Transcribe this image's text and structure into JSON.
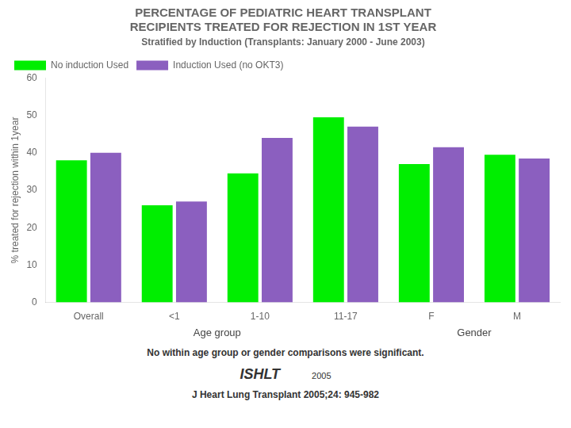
{
  "chart_data": {
    "type": "bar",
    "title": [
      "PERCENTAGE OF PEDIATRIC HEART TRANSPLANT",
      "RECIPIENTS TREATED FOR REJECTION IN 1ST YEAR"
    ],
    "subtitle": "Stratified by Induction (Transplants: January 2000 - June 2003)",
    "ylabel": "% treated for rejection within 1year",
    "categories": [
      "Overall",
      "<1",
      "1-10",
      "11-17",
      "F",
      "M"
    ],
    "series": [
      {
        "name": "No induction Used",
        "color": "#00EE00",
        "values": [
          38,
          26,
          34.5,
          49.5,
          37,
          39.5
        ]
      },
      {
        "name": "Induction Used (no OKT3)",
        "color": "#8B5FBF",
        "values": [
          40,
          27,
          44,
          47,
          41.5,
          38.5
        ]
      }
    ],
    "annotations": [
      {
        "text": "Age group",
        "categories": [
          "Overall",
          "<1",
          "1-10",
          "11-17"
        ]
      },
      {
        "text": "Gender",
        "categories": [
          "F",
          "M"
        ]
      }
    ],
    "note": "No within age group or gender comparisons were significant.",
    "footer": [
      "ISHLT",
      "2005",
      "J Heart Lung Transplant 2005;24: 945-982"
    ],
    "ylim": [
      0,
      60
    ],
    "yticks": [
      0,
      10,
      20,
      30,
      40,
      50,
      60
    ],
    "grid": false,
    "legend": "upper left"
  }
}
